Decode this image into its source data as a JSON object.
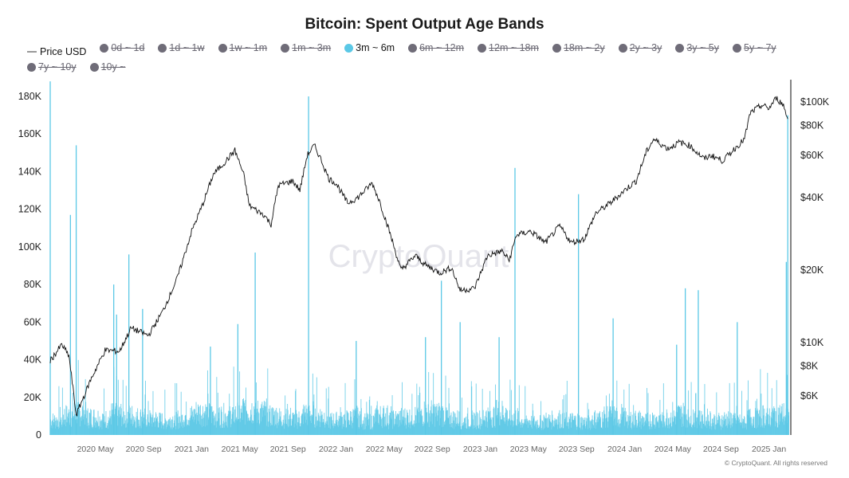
{
  "chart_data": {
    "type": "bar",
    "title": "Bitcoin: Spent Output Age Bands",
    "legend": [
      {
        "label": "Price USD",
        "active": true,
        "kind": "line"
      },
      {
        "label": "0d ~ 1d",
        "active": false
      },
      {
        "label": "1d ~ 1w",
        "active": false
      },
      {
        "label": "1w ~ 1m",
        "active": false
      },
      {
        "label": "1m ~ 3m",
        "active": false
      },
      {
        "label": "3m ~ 6m",
        "active": true
      },
      {
        "label": "6m ~ 12m",
        "active": false
      },
      {
        "label": "12m ~ 18m",
        "active": false
      },
      {
        "label": "18m ~ 2y",
        "active": false
      },
      {
        "label": "2y ~ 3y",
        "active": false
      },
      {
        "label": "3y ~ 5y",
        "active": false
      },
      {
        "label": "5y ~ 7y",
        "active": false
      },
      {
        "label": "7y ~ 10y",
        "active": false
      },
      {
        "label": "10y ~",
        "active": false
      }
    ],
    "legend_placement": "top-left",
    "colors": {
      "bars": "#5bc8e6",
      "bars_fill": "#a9e0f0",
      "price": "#111111",
      "inactive": "#6f6c78"
    },
    "y_left": {
      "ticks": [
        "0",
        "20K",
        "40K",
        "60K",
        "80K",
        "100K",
        "120K",
        "140K",
        "160K",
        "180K"
      ],
      "values": [
        0,
        20000,
        40000,
        60000,
        80000,
        100000,
        120000,
        140000,
        160000,
        180000
      ],
      "range": [
        0,
        180000
      ]
    },
    "y_right": {
      "scale": "log",
      "ticks": [
        "$6K",
        "$8K",
        "$10K",
        "$20K",
        "$40K",
        "$60K",
        "$80K",
        "$100K"
      ],
      "values": [
        6000,
        8000,
        10000,
        20000,
        40000,
        60000,
        80000,
        100000
      ]
    },
    "x_ticks": [
      "2020 May",
      "2020 Sep",
      "2021 Jan",
      "2021 May",
      "2021 Sep",
      "2022 Jan",
      "2022 May",
      "2022 Sep",
      "2023 Jan",
      "2023 May",
      "2023 Sep",
      "2024 Jan",
      "2024 May",
      "2024 Sep",
      "2025 Jan"
    ],
    "x_tick_values": [
      2020.333,
      2020.667,
      2021.0,
      2021.333,
      2021.667,
      2022.0,
      2022.333,
      2022.667,
      2023.0,
      2023.333,
      2023.667,
      2024.0,
      2024.333,
      2024.667,
      2025.0
    ],
    "x_range": [
      2020.02,
      2025.14
    ],
    "spikes": [
      [
        2020.02,
        188000
      ],
      [
        2020.16,
        117000
      ],
      [
        2020.2,
        154000
      ],
      [
        2020.46,
        80000
      ],
      [
        2020.48,
        64000
      ],
      [
        2020.565,
        96000
      ],
      [
        2020.66,
        67000
      ],
      [
        2021.13,
        47000
      ],
      [
        2021.32,
        59000
      ],
      [
        2021.44,
        97000
      ],
      [
        2021.81,
        180000
      ],
      [
        2022.14,
        50000
      ],
      [
        2022.62,
        52000
      ],
      [
        2022.73,
        82000
      ],
      [
        2022.86,
        60000
      ],
      [
        2023.13,
        52000
      ],
      [
        2023.24,
        142000
      ],
      [
        2023.68,
        128000
      ],
      [
        2023.92,
        62000
      ],
      [
        2024.36,
        48000
      ],
      [
        2024.42,
        78000
      ],
      [
        2024.51,
        77000
      ],
      [
        2024.78,
        60000
      ],
      [
        2025.12,
        92000
      ],
      [
        2025.13,
        170000
      ]
    ],
    "baseline_monthly": [
      9000,
      12000,
      14000,
      11000,
      10000,
      13000,
      12000,
      11000,
      10000,
      9000,
      10000,
      12000,
      14000,
      13000,
      12000,
      13000,
      16000,
      14000,
      12000,
      11000,
      10000,
      13000,
      12000,
      9000,
      10000,
      11000,
      9000,
      12000,
      10000,
      11000,
      12000,
      14000,
      13000,
      10000,
      9000,
      10000,
      12000,
      14000,
      11000,
      9000,
      8000,
      9000,
      10000,
      9000,
      8000,
      10000,
      12000,
      11000,
      10000,
      9000,
      10000,
      11000,
      13000,
      12000,
      10000,
      9000,
      10000,
      9000,
      11000,
      12000,
      13000,
      12000
    ],
    "price": [
      [
        2020.02,
        8400
      ],
      [
        2020.1,
        9800
      ],
      [
        2020.15,
        8800
      ],
      [
        2020.2,
        5000
      ],
      [
        2020.3,
        7000
      ],
      [
        2020.4,
        9300
      ],
      [
        2020.5,
        9200
      ],
      [
        2020.58,
        11500
      ],
      [
        2020.7,
        10700
      ],
      [
        2020.8,
        13500
      ],
      [
        2020.9,
        18500
      ],
      [
        2021.0,
        29000
      ],
      [
        2021.08,
        38000
      ],
      [
        2021.15,
        50000
      ],
      [
        2021.25,
        58000
      ],
      [
        2021.3,
        63000
      ],
      [
        2021.36,
        50000
      ],
      [
        2021.4,
        37000
      ],
      [
        2021.5,
        34000
      ],
      [
        2021.55,
        31000
      ],
      [
        2021.6,
        45000
      ],
      [
        2021.7,
        47000
      ],
      [
        2021.75,
        43000
      ],
      [
        2021.8,
        60000
      ],
      [
        2021.85,
        66000
      ],
      [
        2021.9,
        57000
      ],
      [
        2021.95,
        48000
      ],
      [
        2022.0,
        46000
      ],
      [
        2022.08,
        38000
      ],
      [
        2022.15,
        40000
      ],
      [
        2022.25,
        46000
      ],
      [
        2022.3,
        39000
      ],
      [
        2022.37,
        29000
      ],
      [
        2022.45,
        20000
      ],
      [
        2022.55,
        23000
      ],
      [
        2022.62,
        21000
      ],
      [
        2022.72,
        19500
      ],
      [
        2022.8,
        20500
      ],
      [
        2022.86,
        16500
      ],
      [
        2022.96,
        16800
      ],
      [
        2023.05,
        23000
      ],
      [
        2023.15,
        24000
      ],
      [
        2023.2,
        22000
      ],
      [
        2023.25,
        28000
      ],
      [
        2023.35,
        29000
      ],
      [
        2023.45,
        26000
      ],
      [
        2023.55,
        30500
      ],
      [
        2023.63,
        26000
      ],
      [
        2023.72,
        27000
      ],
      [
        2023.8,
        34500
      ],
      [
        2023.9,
        38000
      ],
      [
        2024.0,
        43000
      ],
      [
        2024.08,
        47000
      ],
      [
        2024.15,
        62000
      ],
      [
        2024.2,
        70000
      ],
      [
        2024.3,
        64000
      ],
      [
        2024.38,
        68000
      ],
      [
        2024.45,
        66000
      ],
      [
        2024.55,
        58000
      ],
      [
        2024.6,
        60000
      ],
      [
        2024.68,
        57000
      ],
      [
        2024.75,
        63000
      ],
      [
        2024.83,
        70000
      ],
      [
        2024.87,
        90000
      ],
      [
        2024.95,
        97000
      ],
      [
        2025.0,
        94000
      ],
      [
        2025.05,
        104000
      ],
      [
        2025.1,
        97000
      ],
      [
        2025.13,
        85000
      ]
    ],
    "watermark": "CryptoQuant",
    "copyright": "© CryptoQuant. All rights reserved"
  }
}
